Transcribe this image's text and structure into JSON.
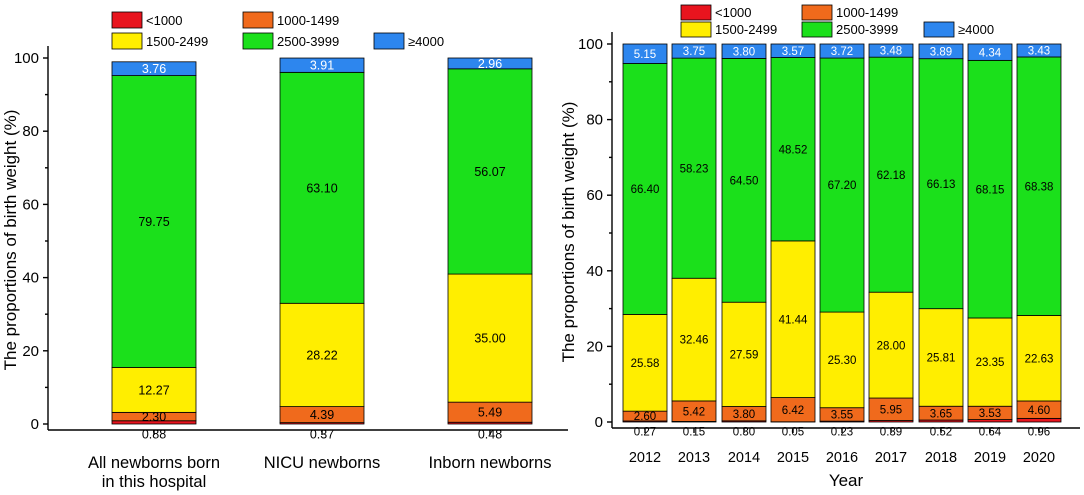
{
  "colors": {
    "<1000": "#e8141e",
    "1000-1499": "#f06a1c",
    "1500-2499": "#ffee00",
    "2500-3999": "#1be01b",
    "≥4000": "#2d86ee"
  },
  "chart_data": [
    {
      "type": "bar",
      "stacked": true,
      "title": "",
      "xlabel": "",
      "ylabel": "The proportions of birth weight (%)",
      "ylim": [
        0,
        100
      ],
      "yticks": [
        "0",
        "20",
        "40",
        "60",
        "80",
        "100"
      ],
      "legend": [
        "<1000",
        "1000-1499",
        "1500-2499",
        "2500-3999",
        "≥4000"
      ],
      "categories": [
        "All newborns born in this hospital",
        "NICU newborns",
        "Inborn newborns"
      ],
      "category_lines": [
        [
          "All newborns born",
          "in this hospital"
        ],
        [
          "NICU newborns"
        ],
        [
          "Inborn newborns"
        ]
      ],
      "series": [
        {
          "name": "<1000",
          "values": [
            0.88,
            0.37,
            0.48
          ],
          "labels": [
            "0.88",
            "0.37",
            "0.48"
          ]
        },
        {
          "name": "1000-1499",
          "values": [
            2.3,
            4.39,
            5.49
          ],
          "labels": [
            "2.30",
            "4.39",
            "5.49"
          ]
        },
        {
          "name": "1500-2499",
          "values": [
            12.27,
            28.22,
            35.0
          ],
          "labels": [
            "12.27",
            "28.22",
            "35.00"
          ]
        },
        {
          "name": "2500-3999",
          "values": [
            79.75,
            63.1,
            56.07
          ],
          "labels": [
            "79.75",
            "63.10",
            "56.07"
          ]
        },
        {
          "name": "≥4000",
          "values": [
            3.76,
            3.91,
            2.96
          ],
          "labels": [
            "3.76",
            "3.91",
            "2.96"
          ]
        }
      ]
    },
    {
      "type": "bar",
      "stacked": true,
      "title": "",
      "xlabel": "Year",
      "ylabel": "The proportions of birth weight (%)",
      "ylim": [
        0,
        100
      ],
      "yticks": [
        "0",
        "20",
        "40",
        "60",
        "80",
        "100"
      ],
      "legend": [
        "<1000",
        "1000-1499",
        "1500-2499",
        "2500-3999",
        "≥4000"
      ],
      "categories": [
        "2012",
        "2013",
        "2014",
        "2015",
        "2016",
        "2017",
        "2018",
        "2019",
        "2020"
      ],
      "category_lines": [
        [
          "2012"
        ],
        [
          "2013"
        ],
        [
          "2014"
        ],
        [
          "2015"
        ],
        [
          "2016"
        ],
        [
          "2017"
        ],
        [
          "2018"
        ],
        [
          "2019"
        ],
        [
          "2020"
        ]
      ],
      "series": [
        {
          "name": "<1000",
          "values": [
            0.27,
            0.15,
            0.3,
            0.05,
            0.23,
            0.39,
            0.52,
            0.64,
            0.96
          ],
          "labels": [
            "0.27",
            "0.15",
            "0.30",
            "0.05",
            "0.23",
            "0.39",
            "0.52",
            "0.64",
            "0.96"
          ]
        },
        {
          "name": "1000-1499",
          "values": [
            2.6,
            5.42,
            3.8,
            6.42,
            3.55,
            5.95,
            3.65,
            3.53,
            4.6
          ],
          "labels": [
            "2.60",
            "5.42",
            "3.80",
            "6.42",
            "3.55",
            "5.95",
            "3.65",
            "3.53",
            "4.60"
          ]
        },
        {
          "name": "1500-2499",
          "values": [
            25.58,
            32.46,
            27.59,
            41.44,
            25.3,
            28.0,
            25.81,
            23.35,
            22.63
          ],
          "labels": [
            "25.58",
            "32.46",
            "27.59",
            "41.44",
            "25.30",
            "28.00",
            "25.81",
            "23.35",
            "22.63"
          ]
        },
        {
          "name": "2500-3999",
          "values": [
            66.4,
            58.23,
            64.5,
            48.52,
            67.2,
            62.18,
            66.13,
            68.15,
            68.38
          ],
          "labels": [
            "66.40",
            "58.23",
            "64.50",
            "48.52",
            "67.20",
            "62.18",
            "66.13",
            "68.15",
            "68.38"
          ]
        },
        {
          "name": "≥4000",
          "values": [
            5.15,
            3.75,
            3.8,
            3.57,
            3.72,
            3.48,
            3.89,
            4.34,
            3.43
          ],
          "labels": [
            "5.15",
            "3.75",
            "3.80",
            "3.57",
            "3.72",
            "3.48",
            "3.89",
            "4.34",
            "3.43"
          ]
        }
      ]
    }
  ]
}
